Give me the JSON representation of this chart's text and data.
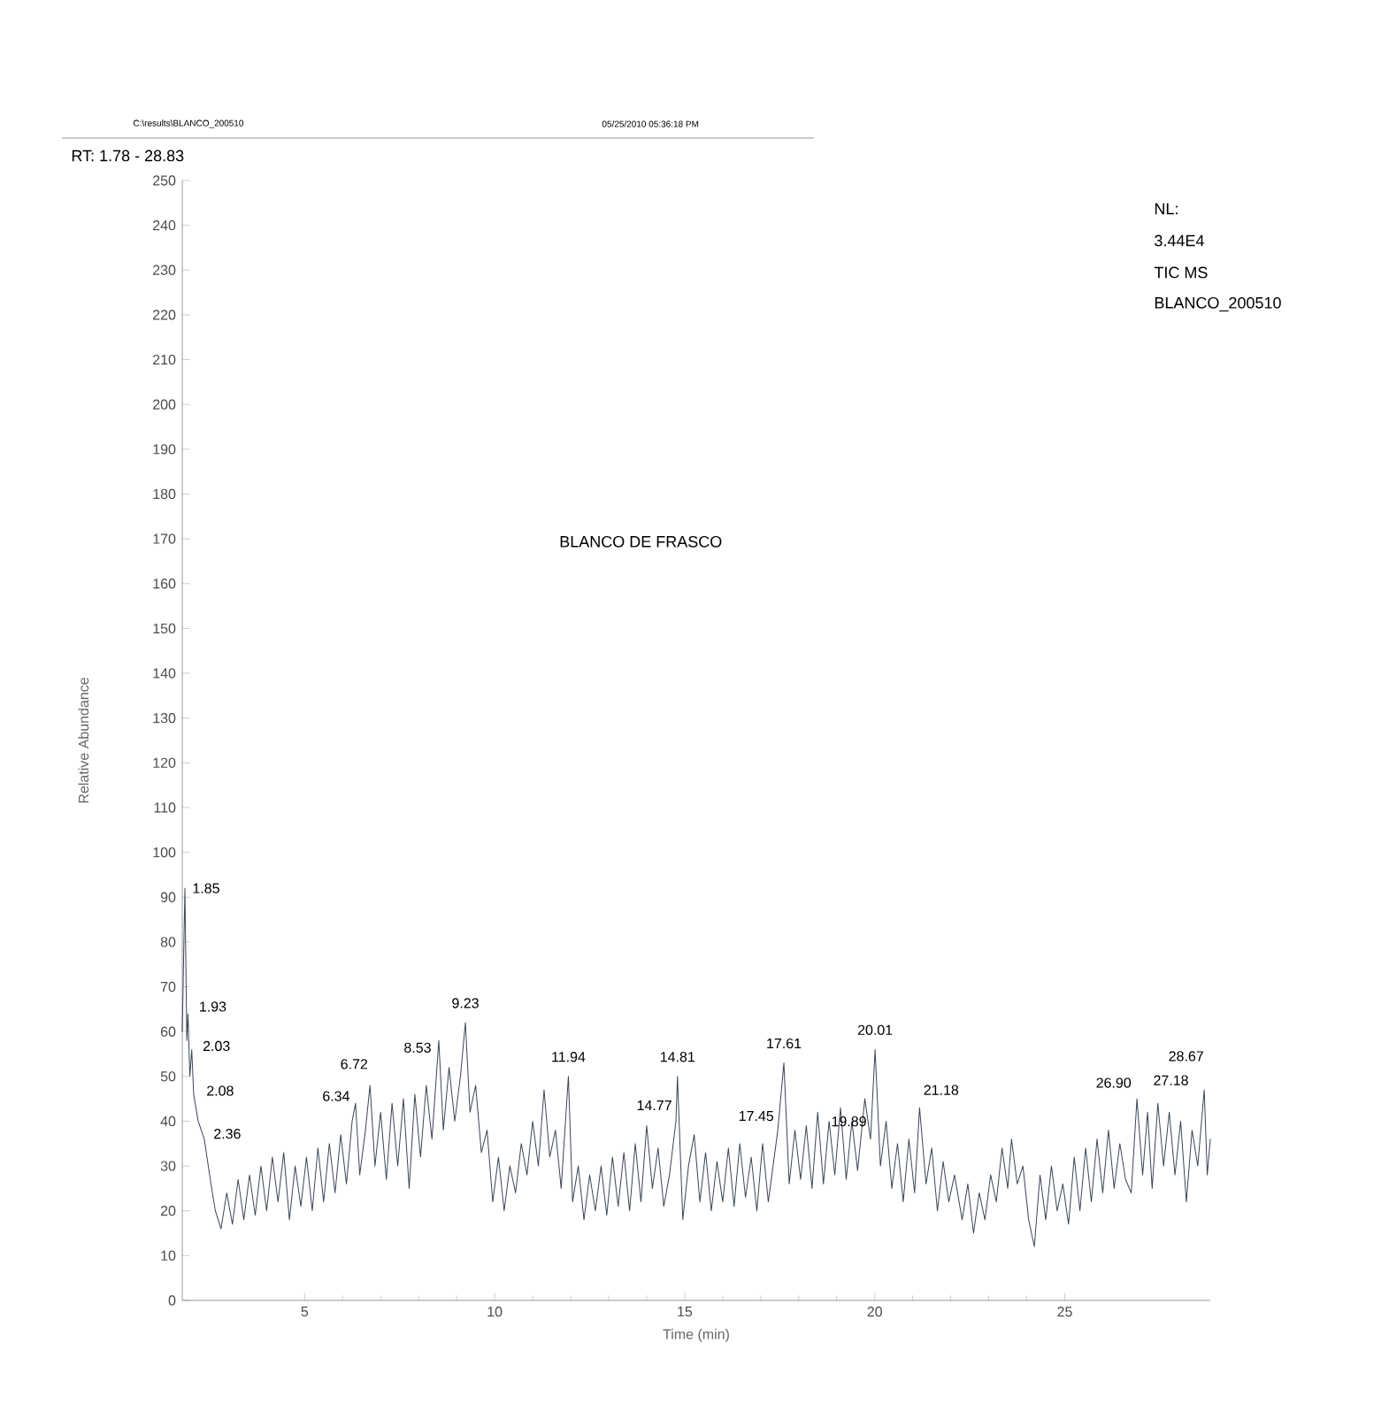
{
  "chart_data": {
    "type": "line",
    "title": "BLANCO DE FRASCO",
    "subtitle": "RT: 1.78 - 28.83",
    "xlabel": "Time (min)",
    "ylabel": "Relative Abundance",
    "xlim": [
      1.78,
      28.83
    ],
    "ylim": [
      0,
      250
    ],
    "xticks": [
      5,
      10,
      15,
      20,
      25
    ],
    "yticks": [
      0,
      10,
      20,
      30,
      40,
      50,
      60,
      70,
      80,
      90,
      100,
      110,
      120,
      130,
      140,
      150,
      160,
      170,
      180,
      190,
      200,
      210,
      220,
      230,
      240,
      250
    ],
    "marker": "none",
    "line_style": "solid",
    "x": [
      1.78,
      1.85,
      1.9,
      1.93,
      1.98,
      2.03,
      2.08,
      2.2,
      2.36,
      2.5,
      2.65,
      2.8,
      2.95,
      3.1,
      3.25,
      3.4,
      3.55,
      3.7,
      3.85,
      4.0,
      4.15,
      4.3,
      4.45,
      4.6,
      4.75,
      4.9,
      5.05,
      5.2,
      5.35,
      5.5,
      5.65,
      5.8,
      5.95,
      6.1,
      6.25,
      6.34,
      6.45,
      6.6,
      6.72,
      6.85,
      7.0,
      7.15,
      7.3,
      7.45,
      7.6,
      7.75,
      7.9,
      8.05,
      8.2,
      8.35,
      8.53,
      8.65,
      8.8,
      8.95,
      9.1,
      9.23,
      9.35,
      9.5,
      9.65,
      9.8,
      9.95,
      10.1,
      10.25,
      10.4,
      10.55,
      10.7,
      10.85,
      11.0,
      11.15,
      11.3,
      11.45,
      11.6,
      11.75,
      11.94,
      12.05,
      12.2,
      12.35,
      12.5,
      12.65,
      12.8,
      12.95,
      13.1,
      13.25,
      13.4,
      13.55,
      13.7,
      13.85,
      14.0,
      14.15,
      14.3,
      14.45,
      14.6,
      14.77,
      14.81,
      14.95,
      15.1,
      15.25,
      15.4,
      15.55,
      15.7,
      15.85,
      16.0,
      16.15,
      16.3,
      16.45,
      16.6,
      16.75,
      16.9,
      17.05,
      17.2,
      17.45,
      17.61,
      17.75,
      17.9,
      18.05,
      18.2,
      18.35,
      18.5,
      18.65,
      18.8,
      18.95,
      19.1,
      19.25,
      19.4,
      19.55,
      19.74,
      19.89,
      20.01,
      20.15,
      20.3,
      20.45,
      20.6,
      20.75,
      20.9,
      21.05,
      21.18,
      21.35,
      21.5,
      21.65,
      21.8,
      21.95,
      22.1,
      22.3,
      22.45,
      22.6,
      22.75,
      22.9,
      23.05,
      23.2,
      23.35,
      23.5,
      23.6,
      23.75,
      23.9,
      24.05,
      24.2,
      24.35,
      24.5,
      24.65,
      24.8,
      24.95,
      25.1,
      25.25,
      25.4,
      25.55,
      25.7,
      25.85,
      26.0,
      26.15,
      26.3,
      26.45,
      26.6,
      26.75,
      26.9,
      27.05,
      27.18,
      27.3,
      27.45,
      27.6,
      27.75,
      27.9,
      28.05,
      28.2,
      28.35,
      28.5,
      28.67,
      28.75,
      28.83
    ],
    "series": [
      {
        "color": "#3a4656",
        "values": [
          60,
          92,
          58,
          64,
          50,
          56,
          46,
          40,
          36,
          28,
          20,
          16,
          24,
          17,
          27,
          18,
          28,
          19,
          30,
          20,
          32,
          22,
          33,
          18,
          30,
          21,
          32,
          20,
          34,
          22,
          35,
          24,
          37,
          26,
          40,
          44,
          28,
          38,
          48,
          30,
          42,
          27,
          44,
          30,
          45,
          25,
          46,
          32,
          48,
          36,
          58,
          38,
          52,
          40,
          50,
          62,
          42,
          48,
          33,
          38,
          22,
          32,
          20,
          30,
          24,
          35,
          28,
          40,
          30,
          47,
          32,
          38,
          25,
          50,
          22,
          30,
          18,
          28,
          20,
          30,
          19,
          32,
          21,
          33,
          20,
          35,
          22,
          39,
          25,
          34,
          21,
          28,
          40,
          50,
          18,
          30,
          37,
          22,
          33,
          20,
          31,
          22,
          34,
          21,
          35,
          23,
          32,
          20,
          35,
          22,
          38,
          53,
          26,
          38,
          27,
          39,
          25,
          42,
          26,
          40,
          28,
          43,
          27,
          40,
          29,
          45,
          36,
          56,
          30,
          40,
          25,
          35,
          22,
          36,
          24,
          43,
          26,
          34,
          20,
          31,
          22,
          28,
          18,
          26,
          15,
          24,
          18,
          28,
          22,
          34,
          25,
          36,
          26,
          30,
          18,
          12,
          28,
          18,
          30,
          20,
          26,
          17,
          32,
          20,
          34,
          22,
          36,
          24,
          38,
          25,
          35,
          27,
          24,
          45,
          28,
          42,
          25,
          44,
          30,
          42,
          28,
          40,
          22,
          38,
          30,
          47,
          28,
          36
        ]
      }
    ],
    "annotations": [
      "C:\\results\\BLANCO_200510",
      "05/25/2010 05:36:18 PM",
      "NL:",
      "3.44E4",
      "TIC MS",
      "BLANCO_200510",
      {
        "text": "1.85",
        "x": 1.85,
        "y": 92
      },
      {
        "text": "1.93",
        "x": 1.93,
        "y": 64
      },
      {
        "text": "2.03",
        "x": 2.03,
        "y": 56
      },
      {
        "text": "2.08",
        "x": 2.08,
        "y": 46
      },
      {
        "text": "2.36",
        "x": 2.36,
        "y": 36
      },
      {
        "text": "6.34",
        "x": 6.34,
        "y": 44
      },
      {
        "text": "6.72",
        "x": 6.72,
        "y": 48
      },
      {
        "text": "8.53",
        "x": 8.53,
        "y": 58
      },
      {
        "text": "9.23",
        "x": 9.23,
        "y": 62
      },
      {
        "text": "11.94",
        "x": 11.94,
        "y": 50
      },
      {
        "text": "14.77",
        "x": 14.77,
        "y": 40
      },
      {
        "text": "14.81",
        "x": 14.81,
        "y": 50
      },
      {
        "text": "17.45",
        "x": 17.45,
        "y": 38
      },
      {
        "text": "17.61",
        "x": 17.61,
        "y": 53
      },
      {
        "text": "19.89",
        "x": 19.89,
        "y": 36
      },
      {
        "text": "20.01",
        "x": 20.01,
        "y": 56
      },
      {
        "text": "21.18",
        "x": 21.18,
        "y": 43
      },
      {
        "text": "26.90",
        "x": 26.9,
        "y": 45
      },
      {
        "text": "27.18",
        "x": 27.18,
        "y": 42
      },
      {
        "text": "28.67",
        "x": 28.67,
        "y": 47
      }
    ]
  }
}
